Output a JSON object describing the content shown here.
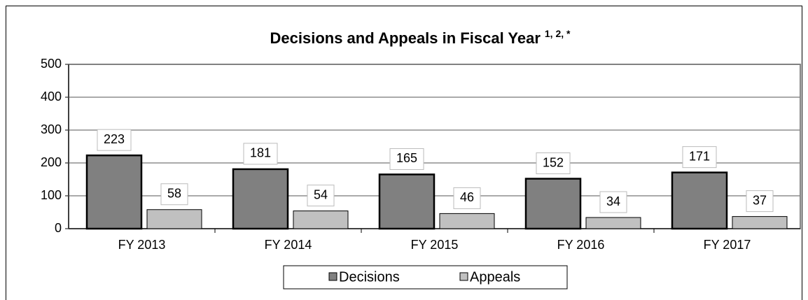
{
  "chart_data": {
    "type": "bar",
    "title": "Decisions and Appeals in Fiscal Year",
    "title_superscript": "1, 2, *",
    "categories": [
      "FY 2013",
      "FY 2014",
      "FY 2015",
      "FY 2016",
      "FY 2017"
    ],
    "series": [
      {
        "name": "Decisions",
        "color": "#808080",
        "values": [
          223,
          181,
          165,
          152,
          171
        ]
      },
      {
        "name": "Appeals",
        "color": "#c0c0c0",
        "values": [
          58,
          54,
          46,
          34,
          37
        ]
      }
    ],
    "ylim": [
      0,
      500
    ],
    "yticks": [
      0,
      100,
      200,
      300,
      400,
      500
    ],
    "grid": true,
    "legend": "bottom"
  }
}
